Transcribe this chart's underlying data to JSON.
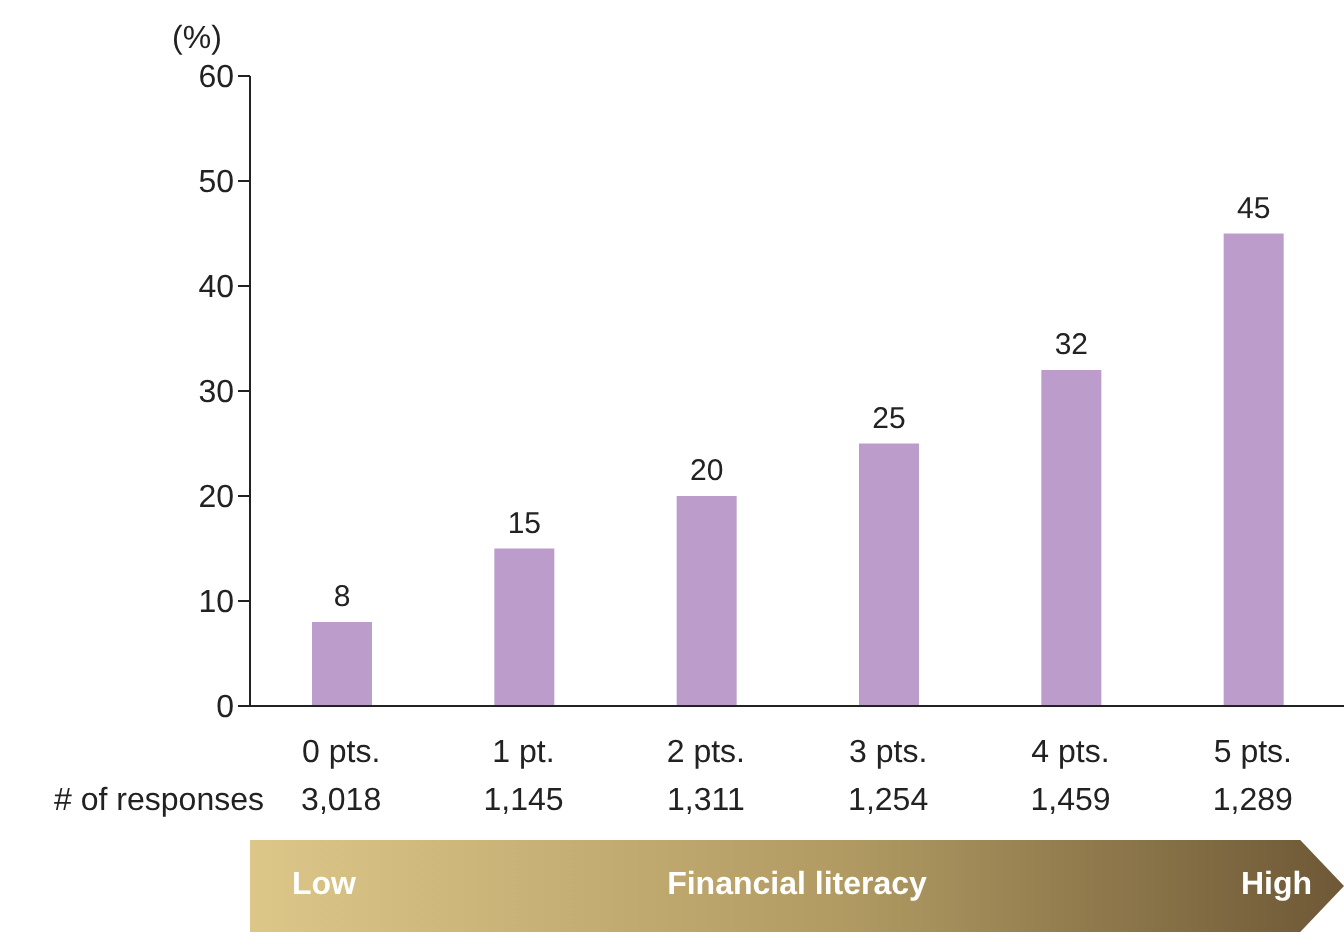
{
  "chart_data": {
    "type": "bar",
    "ylabel": "(%)",
    "xlabel": "Financial literacy",
    "categories": [
      "0 pts.",
      "1 pt.",
      "2 pts.",
      "3 pts.",
      "4 pts.",
      "5 pts."
    ],
    "values": [
      8,
      15,
      20,
      25,
      32,
      45
    ],
    "color": "#bb9ccb",
    "ylim": [
      0,
      60
    ],
    "yticks": [
      0,
      10,
      20,
      30,
      40,
      50,
      60
    ],
    "data_labels": true,
    "grid": false,
    "legend": false,
    "annotations": [
      "# of responses",
      "3,018",
      "1,145",
      "1,311",
      "1,254",
      "1,459",
      "1,289",
      "Low",
      "High"
    ]
  }
}
